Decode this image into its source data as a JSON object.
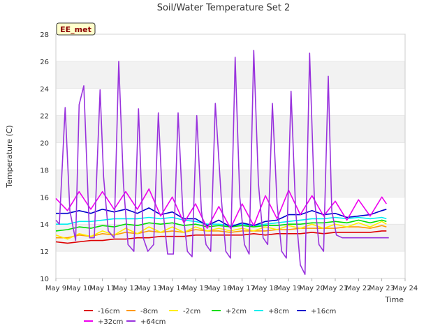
{
  "chart_data": {
    "type": "line",
    "title": "Soil/Water Temperature Set 2",
    "xlabel": "Time",
    "ylabel": "Temperature (C)",
    "annotation": "EE_met",
    "xlim": [
      9,
      24
    ],
    "ylim": [
      10,
      28
    ],
    "x_ticks": [
      9,
      10,
      11,
      12,
      13,
      14,
      15,
      16,
      17,
      18,
      19,
      20,
      21,
      22,
      23,
      24
    ],
    "x_tick_labels": [
      "May 9",
      "May 10",
      "May 11",
      "May 12",
      "May 13",
      "May 14",
      "May 15",
      "May 16",
      "May 17",
      "May 18",
      "May 19",
      "May 20",
      "May 21",
      "May 22",
      "May 23",
      "May 24"
    ],
    "y_ticks": [
      10,
      12,
      14,
      16,
      18,
      20,
      22,
      24,
      26,
      28
    ],
    "y_tick_labels": [
      "10",
      "12",
      "14",
      "16",
      "18",
      "20",
      "22",
      "24",
      "26",
      "28"
    ],
    "legend_position": "bottom",
    "grid": "horizontal bands",
    "colors": {
      "band": "#f2f2f2",
      "grid": "#dddddd",
      "annotation_fill": "#ffffcc",
      "annotation_text": "#8b0000"
    },
    "series": [
      {
        "name": "-16cm",
        "color": "#dd0000",
        "x": [
          9.0,
          9.5,
          10.0,
          10.5,
          11.0,
          11.5,
          12.0,
          12.5,
          13.0,
          13.5,
          14.0,
          14.5,
          15.0,
          15.5,
          16.0,
          16.5,
          17.0,
          17.5,
          18.0,
          18.5,
          19.0,
          19.5,
          20.0,
          20.5,
          21.0,
          21.5,
          22.0,
          22.5,
          23.0,
          23.2
        ],
        "y": [
          12.7,
          12.6,
          12.7,
          12.8,
          12.8,
          12.9,
          12.9,
          13.0,
          13.0,
          13.1,
          13.1,
          13.1,
          13.2,
          13.2,
          13.2,
          13.2,
          13.2,
          13.3,
          13.2,
          13.3,
          13.3,
          13.3,
          13.4,
          13.3,
          13.4,
          13.4,
          13.4,
          13.4,
          13.5,
          13.5
        ]
      },
      {
        "name": "-8cm",
        "color": "#ff9900",
        "x": [
          9.0,
          9.5,
          10.0,
          10.5,
          11.0,
          11.5,
          12.0,
          12.5,
          13.0,
          13.5,
          14.0,
          14.5,
          15.0,
          15.5,
          16.0,
          16.5,
          17.0,
          17.5,
          18.0,
          18.5,
          19.0,
          19.5,
          20.0,
          20.5,
          21.0,
          21.5,
          22.0,
          22.5,
          23.0,
          23.2
        ],
        "y": [
          13.0,
          13.0,
          13.2,
          13.1,
          13.3,
          13.2,
          13.4,
          13.3,
          13.5,
          13.4,
          13.5,
          13.4,
          13.6,
          13.5,
          13.5,
          13.4,
          13.5,
          13.5,
          13.5,
          13.6,
          13.6,
          13.7,
          13.7,
          13.7,
          13.7,
          13.8,
          13.8,
          13.7,
          13.9,
          13.8
        ]
      },
      {
        "name": "-2cm",
        "color": "#ffee00",
        "x": [
          9.0,
          9.5,
          10.0,
          10.5,
          11.0,
          11.5,
          12.0,
          12.5,
          13.0,
          13.5,
          14.0,
          14.5,
          15.0,
          15.5,
          16.0,
          16.5,
          17.0,
          17.5,
          18.0,
          18.5,
          19.0,
          19.5,
          20.0,
          20.5,
          21.0,
          21.5,
          22.0,
          22.5,
          23.0,
          23.2
        ],
        "y": [
          13.2,
          12.9,
          13.3,
          13.1,
          13.5,
          13.2,
          13.7,
          13.3,
          13.8,
          13.4,
          13.8,
          13.4,
          13.8,
          13.5,
          13.7,
          13.5,
          13.7,
          13.5,
          13.8,
          13.6,
          13.9,
          13.7,
          14.0,
          13.7,
          14.0,
          13.8,
          14.1,
          13.8,
          14.2,
          14.0
        ]
      },
      {
        "name": "+2cm",
        "color": "#00dd00",
        "x": [
          9.0,
          9.5,
          10.0,
          10.5,
          11.0,
          11.5,
          12.0,
          12.5,
          13.0,
          13.5,
          14.0,
          14.5,
          15.0,
          15.5,
          16.0,
          16.5,
          17.0,
          17.5,
          18.0,
          18.5,
          19.0,
          19.5,
          20.0,
          20.5,
          21.0,
          21.5,
          22.0,
          22.5,
          23.0,
          23.2
        ],
        "y": [
          13.5,
          13.6,
          13.8,
          13.7,
          13.9,
          13.8,
          14.0,
          13.9,
          14.1,
          14.0,
          14.1,
          13.9,
          14.0,
          13.8,
          13.9,
          13.8,
          13.9,
          13.8,
          13.9,
          13.9,
          14.0,
          14.0,
          14.1,
          14.1,
          14.2,
          14.1,
          14.3,
          14.1,
          14.3,
          14.2
        ]
      },
      {
        "name": "+8cm",
        "color": "#00eeee",
        "x": [
          9.0,
          9.5,
          10.0,
          10.5,
          11.0,
          11.5,
          12.0,
          12.5,
          13.0,
          13.5,
          14.0,
          14.5,
          15.0,
          15.5,
          16.0,
          16.5,
          17.0,
          17.5,
          18.0,
          18.5,
          19.0,
          19.5,
          20.0,
          20.5,
          21.0,
          21.5,
          22.0,
          22.5,
          23.0,
          23.2
        ],
        "y": [
          14.0,
          14.0,
          14.2,
          14.2,
          14.3,
          14.4,
          14.4,
          14.4,
          14.5,
          14.4,
          14.5,
          14.3,
          14.2,
          14.0,
          14.0,
          13.9,
          14.0,
          13.9,
          14.0,
          14.1,
          14.2,
          14.3,
          14.4,
          14.4,
          14.5,
          14.4,
          14.5,
          14.4,
          14.5,
          14.4
        ]
      },
      {
        "name": "+16cm",
        "color": "#0000cc",
        "x": [
          9.0,
          9.5,
          10.0,
          10.5,
          11.0,
          11.5,
          12.0,
          12.5,
          13.0,
          13.5,
          14.0,
          14.5,
          15.0,
          15.5,
          16.0,
          16.5,
          17.0,
          17.5,
          18.0,
          18.5,
          19.0,
          19.5,
          20.0,
          20.5,
          21.0,
          21.5,
          22.0,
          22.5,
          23.0,
          23.2
        ],
        "y": [
          14.8,
          14.8,
          15.0,
          14.8,
          15.1,
          14.9,
          15.1,
          14.8,
          15.2,
          14.7,
          14.9,
          14.4,
          14.4,
          13.9,
          14.3,
          13.8,
          14.1,
          13.9,
          14.2,
          14.3,
          14.7,
          14.7,
          15.0,
          14.7,
          14.8,
          14.5,
          14.6,
          14.7,
          15.0,
          15.1
        ]
      },
      {
        "name": "+32cm",
        "color": "#ee00ee",
        "x": [
          9.0,
          9.5,
          10.0,
          10.5,
          11.0,
          11.5,
          12.0,
          12.5,
          13.0,
          13.5,
          14.0,
          14.5,
          15.0,
          15.5,
          16.0,
          16.5,
          17.0,
          17.5,
          18.0,
          18.5,
          19.0,
          19.5,
          20.0,
          20.5,
          21.0,
          21.5,
          22.0,
          22.5,
          23.0,
          23.2
        ],
        "y": [
          15.9,
          15.0,
          16.4,
          15.1,
          16.4,
          15.1,
          16.4,
          15.1,
          16.6,
          14.6,
          16.0,
          14.1,
          15.5,
          13.7,
          15.3,
          13.7,
          15.5,
          13.9,
          16.1,
          14.4,
          16.5,
          14.7,
          16.1,
          14.6,
          15.7,
          14.3,
          15.8,
          14.6,
          16.0,
          15.5
        ]
      },
      {
        "name": "+64cm",
        "color": "#9933dd",
        "x": [
          9.0,
          9.15,
          9.4,
          9.6,
          9.85,
          10.0,
          10.2,
          10.45,
          10.65,
          10.9,
          11.05,
          11.25,
          11.5,
          11.7,
          11.9,
          12.1,
          12.35,
          12.55,
          12.75,
          12.95,
          13.2,
          13.4,
          13.6,
          13.8,
          14.05,
          14.25,
          14.45,
          14.65,
          14.85,
          15.05,
          15.25,
          15.45,
          15.65,
          15.85,
          16.1,
          16.3,
          16.5,
          16.7,
          16.9,
          17.1,
          17.3,
          17.5,
          17.7,
          17.9,
          18.1,
          18.3,
          18.5,
          18.7,
          18.9,
          19.1,
          19.3,
          19.5,
          19.7,
          19.9,
          20.1,
          20.3,
          20.5,
          20.7,
          20.85,
          21.05,
          21.3,
          21.5,
          21.65,
          21.9,
          22.1,
          22.3,
          22.5,
          22.7,
          22.95,
          23.15,
          23.3
        ],
        "y": [
          14.3,
          14.0,
          22.6,
          15.0,
          12.8,
          22.8,
          24.2,
          13.0,
          13.0,
          23.9,
          17.5,
          13.5,
          13.0,
          26.0,
          17.0,
          12.5,
          12.0,
          22.5,
          13.0,
          12.0,
          12.5,
          22.2,
          15.0,
          11.8,
          11.8,
          22.2,
          15.0,
          12.0,
          11.6,
          22.0,
          15.0,
          12.5,
          12.0,
          22.9,
          16.0,
          12.0,
          11.5,
          26.3,
          16.0,
          12.5,
          11.8,
          26.8,
          17.0,
          13.0,
          12.5,
          22.9,
          15.5,
          12.0,
          11.5,
          23.8,
          15.0,
          11.0,
          10.3,
          26.6,
          16.0,
          12.5,
          12.0,
          24.9,
          15.0,
          13.2,
          13.0,
          13.0,
          13.0,
          13.0,
          13.0,
          13.0,
          13.0,
          13.0,
          13.0,
          13.0,
          13.0
        ]
      }
    ]
  }
}
